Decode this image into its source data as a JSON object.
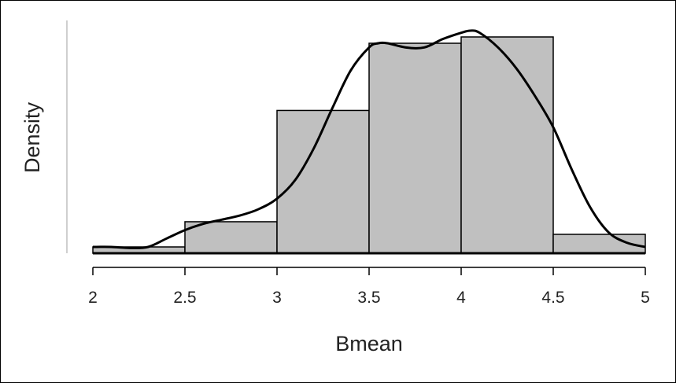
{
  "chart_data": {
    "type": "bar",
    "subtype": "histogram-with-density",
    "xlabel": "Bmean",
    "ylabel": "Density",
    "xlim": [
      2,
      5
    ],
    "ylim": [
      0,
      1.1
    ],
    "x_ticks": [
      "2",
      "2.5",
      "3",
      "3.5",
      "4",
      "4.5",
      "5"
    ],
    "y_tick_labels_shown": false,
    "bins": [
      {
        "from": 2.0,
        "to": 2.5,
        "density": 0.03
      },
      {
        "from": 2.5,
        "to": 3.0,
        "density": 0.15
      },
      {
        "from": 3.0,
        "to": 3.5,
        "density": 0.68
      },
      {
        "from": 3.5,
        "to": 4.0,
        "density": 1.0
      },
      {
        "from": 4.0,
        "to": 4.5,
        "density": 1.03
      },
      {
        "from": 4.5,
        "to": 5.0,
        "density": 0.09
      }
    ],
    "density_curve": {
      "x": [
        2.0,
        2.1,
        2.2,
        2.3,
        2.4,
        2.5,
        2.6,
        2.7,
        2.8,
        2.9,
        3.0,
        3.1,
        3.2,
        3.3,
        3.4,
        3.5,
        3.55,
        3.6,
        3.7,
        3.8,
        3.9,
        4.0,
        4.05,
        4.1,
        4.2,
        4.3,
        4.4,
        4.5,
        4.6,
        4.7,
        4.8,
        4.9,
        5.0
      ],
      "y": [
        0.03,
        0.03,
        0.025,
        0.03,
        0.07,
        0.11,
        0.14,
        0.16,
        0.18,
        0.21,
        0.26,
        0.35,
        0.5,
        0.69,
        0.87,
        0.98,
        1.0,
        1.0,
        0.98,
        0.98,
        1.02,
        1.05,
        1.06,
        1.05,
        0.98,
        0.88,
        0.75,
        0.6,
        0.4,
        0.22,
        0.1,
        0.05,
        0.03
      ]
    },
    "bar_fill": "#c0c0c0",
    "bar_stroke": "#000000",
    "curve_color": "#000000",
    "grid": false
  }
}
